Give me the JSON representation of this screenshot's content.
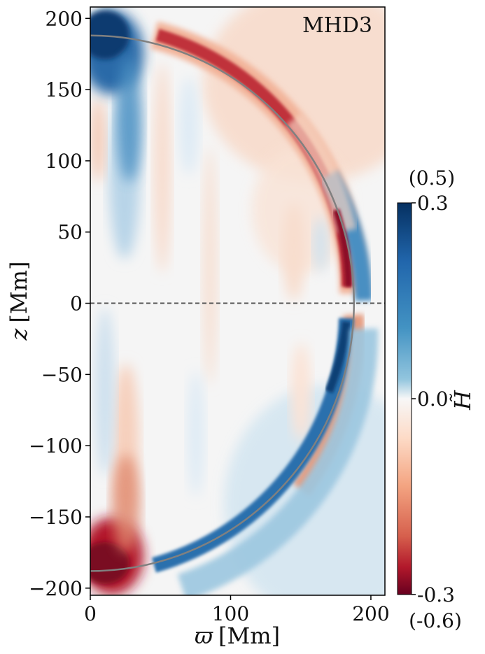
{
  "chart_data": {
    "type": "heatmap",
    "annotation": "MHD3",
    "xlabel": {
      "symbol": "ϖ",
      "unit": "[Mm]"
    },
    "ylabel": {
      "symbol": "z",
      "unit": "[Mm]"
    },
    "xlim": [
      0,
      210
    ],
    "ylim": [
      -205,
      208
    ],
    "xticks": [
      0,
      100,
      200
    ],
    "yticks": [
      200,
      150,
      100,
      50,
      0,
      -50,
      -100,
      -150,
      -200
    ],
    "ytick_labels": [
      "200",
      "150",
      "100",
      "50",
      "0",
      "−50",
      "−100",
      "−150",
      "−200"
    ],
    "sphere_radius": 188,
    "equator_line": {
      "z": 0,
      "style": "dashed"
    },
    "colorbar": {
      "label": "H̃",
      "ticks": [
        0.3,
        0.0,
        -0.3
      ],
      "tick_labels": [
        "0.3",
        "0.0",
        "-0.3"
      ],
      "top_note": "(0.5)",
      "bottom_note": "(-0.6)",
      "colormap": "RdBu",
      "colors": {
        "max": "#053061",
        "mid": "#f7f7f7",
        "min": "#67001f"
      }
    },
    "colors": {
      "sphere": "#808080",
      "equator": "#555555",
      "axes": "#000000"
    }
  }
}
